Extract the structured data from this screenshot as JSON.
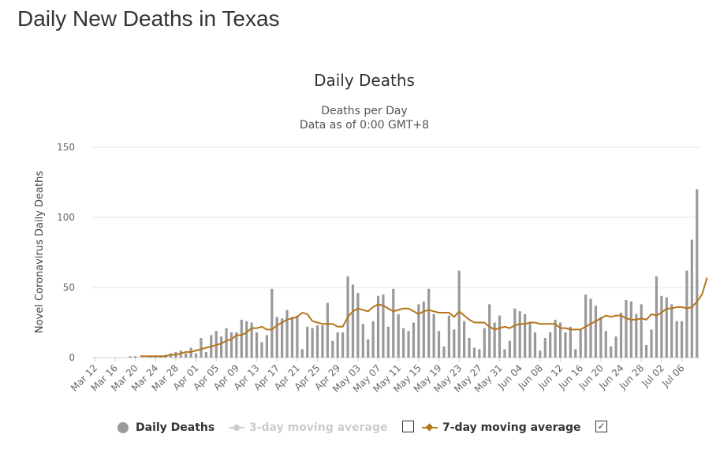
{
  "page": {
    "title": "Daily New Deaths in Texas"
  },
  "colors": {
    "bars": "#999999",
    "ma7": "#b5751b",
    "ma3_disabled": "#cccccc",
    "grid": "#e6e6e6"
  },
  "legend": {
    "items": [
      {
        "label": "Daily Deaths",
        "symbol": "circle",
        "enabled": true
      },
      {
        "label": "3-day moving average",
        "symbol": "line-dot",
        "enabled": false,
        "checked": false
      },
      {
        "label": "7-day moving average",
        "symbol": "line-diamond",
        "enabled": true,
        "checked": true
      }
    ],
    "check_mark": "✓"
  },
  "chart_data": {
    "type": "bar",
    "title": "Daily Deaths",
    "subtitle": [
      "Deaths per Day",
      "Data as of 0:00 GMT+8"
    ],
    "ylabel": "Novel Coronavirus Daily Deaths",
    "xlabel": "",
    "ylim": [
      0,
      150
    ],
    "yticks": [
      0,
      50,
      100,
      150
    ],
    "grid": true,
    "legend_position": "bottom",
    "start_date": "Mar 12",
    "xtick_labels": [
      "Mar 12",
      "Mar 16",
      "Mar 20",
      "Mar 24",
      "Mar 28",
      "Apr 01",
      "Apr 05",
      "Apr 09",
      "Apr 13",
      "Apr 17",
      "Apr 21",
      "Apr 25",
      "Apr 29",
      "May 03",
      "May 07",
      "May 11",
      "May 15",
      "May 19",
      "May 23",
      "May 27",
      "May 31",
      "Jun 04",
      "Jun 08",
      "Jun 12",
      "Jun 16",
      "Jun 20",
      "Jun 24",
      "Jun 28",
      "Jul 02",
      "Jul 06"
    ],
    "series": [
      {
        "name": "Daily Deaths",
        "type": "bar",
        "values": [
          0,
          0,
          0,
          0,
          0,
          0,
          0,
          1,
          1,
          0,
          0,
          1,
          1,
          1,
          2,
          3,
          4,
          5,
          3,
          7,
          3,
          14,
          4,
          16,
          19,
          15,
          21,
          18,
          18,
          27,
          26,
          25,
          18,
          11,
          16,
          49,
          29,
          28,
          34,
          29,
          30,
          6,
          22,
          21,
          23,
          23,
          39,
          12,
          18,
          18,
          58,
          52,
          46,
          24,
          13,
          26,
          44,
          45,
          22,
          49,
          31,
          21,
          19,
          25,
          38,
          40,
          49,
          31,
          19,
          8,
          30,
          20,
          62,
          26,
          14,
          7,
          6,
          21,
          38,
          25,
          30,
          6,
          12,
          35,
          33,
          31,
          25,
          18,
          5,
          14,
          18,
          27,
          25,
          18,
          22,
          6,
          20,
          45,
          42,
          37,
          29,
          19,
          8,
          15,
          32,
          41,
          40,
          31,
          38,
          9,
          20,
          58,
          44,
          43,
          38,
          26,
          26,
          62,
          84,
          120
        ]
      },
      {
        "name": "7-day moving average",
        "type": "line",
        "start_index": 9,
        "values": [
          1,
          1,
          1,
          1,
          1,
          1,
          2,
          2,
          3,
          4,
          4,
          5,
          6,
          7,
          8,
          9,
          10,
          12,
          13,
          16,
          16,
          18,
          21,
          21,
          22,
          20,
          20,
          23,
          25,
          27,
          28,
          29,
          32,
          31,
          26,
          25,
          24,
          24,
          24,
          22,
          22,
          29,
          33,
          35,
          34,
          33,
          36,
          38,
          37,
          35,
          33,
          34,
          35,
          35,
          33,
          31,
          33,
          34,
          33,
          32,
          32,
          32,
          29,
          33,
          30,
          27,
          25,
          25,
          25,
          22,
          20,
          21,
          22,
          21,
          23,
          24,
          24,
          25,
          25,
          24,
          24,
          24,
          24,
          21,
          21,
          20,
          20,
          20,
          22,
          24,
          26,
          28,
          30,
          29,
          30,
          30,
          28,
          27,
          27,
          28,
          27,
          31,
          30,
          32,
          35,
          35,
          36,
          36,
          35,
          36,
          40,
          45,
          57
        ]
      },
      {
        "name": "3-day moving average",
        "type": "line",
        "visible": false,
        "values": []
      }
    ]
  }
}
